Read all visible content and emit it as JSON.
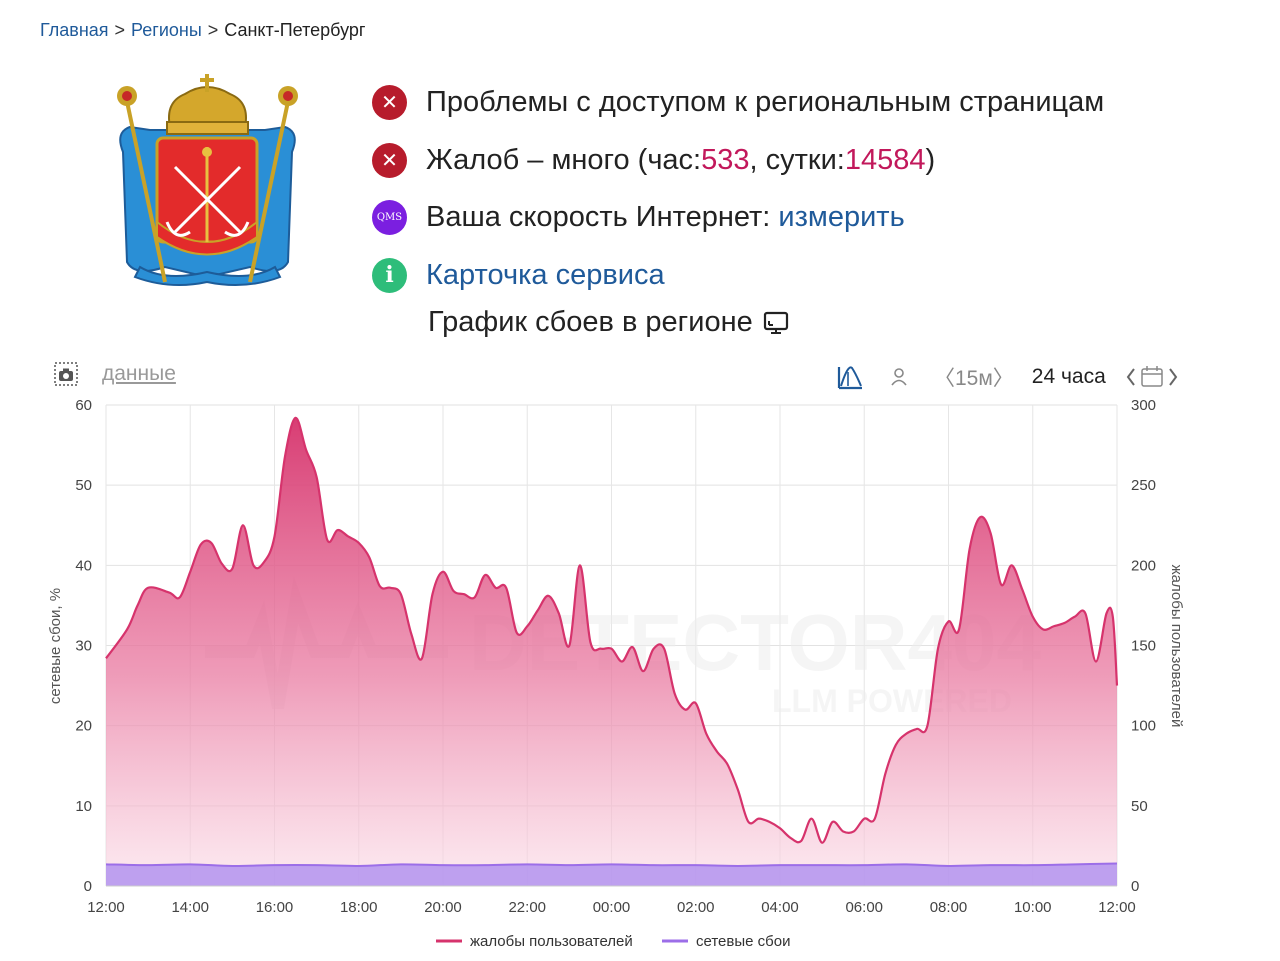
{
  "breadcrumb": {
    "home": "Главная",
    "regions": "Регионы",
    "current": "Санкт-Петербург"
  },
  "status": {
    "access_problems": "Проблемы с доступом к региональным страницам",
    "complaints_prefix": "Жалоб – много (час: ",
    "complaints_hour": "533",
    "complaints_mid": ", сутки: ",
    "complaints_day": "14584",
    "complaints_suffix": ")",
    "speed_prefix": "Ваша скорость Интернет: ",
    "speed_link": "измерить",
    "qms_badge": "QMS",
    "service_card": "Карточка сервиса"
  },
  "graph_title": "График сбоев в регионе",
  "toolbar": {
    "data_link": "данные",
    "interval": "〈15м〉",
    "range": "24 часа"
  },
  "watermark": {
    "line1": "DETECTOR404",
    "line2": "LLM POWERED"
  },
  "colors": {
    "complaints": "#d6336c",
    "outages": "#9c6ee8",
    "link": "#1f5a9a",
    "error": "#b71c2c"
  },
  "chart_data": {
    "type": "area",
    "xlabels": [
      "12:00",
      "14:00",
      "16:00",
      "18:00",
      "20:00",
      "22:00",
      "00:00",
      "02:00",
      "04:00",
      "06:00",
      "08:00",
      "10:00",
      "12:00"
    ],
    "y_left": {
      "label": "сетевые сбои, %",
      "ticks": [
        "0",
        "10",
        "20",
        "30",
        "40",
        "50",
        "60"
      ],
      "range": [
        0,
        60
      ]
    },
    "y_right": {
      "label": "жалобы пользователей",
      "ticks": [
        "0",
        "50",
        "100",
        "150",
        "200",
        "250",
        "300"
      ],
      "range": [
        0,
        300
      ]
    },
    "x_range_hours": [
      0,
      24
    ],
    "series": [
      {
        "name": "жалобы пользователей",
        "axis": "right",
        "points": [
          [
            0,
            142
          ],
          [
            0.5,
            160
          ],
          [
            0.75,
            175
          ],
          [
            1,
            186
          ],
          [
            1.5,
            183
          ],
          [
            1.75,
            180
          ],
          [
            2,
            196
          ],
          [
            2.25,
            213
          ],
          [
            2.5,
            214
          ],
          [
            2.75,
            201
          ],
          [
            3,
            198
          ],
          [
            3.25,
            225
          ],
          [
            3.5,
            200
          ],
          [
            3.75,
            202
          ],
          [
            4,
            218
          ],
          [
            4.25,
            268
          ],
          [
            4.5,
            292
          ],
          [
            4.75,
            272
          ],
          [
            5,
            255
          ],
          [
            5.25,
            216
          ],
          [
            5.5,
            222
          ],
          [
            5.75,
            218
          ],
          [
            6,
            214
          ],
          [
            6.25,
            205
          ],
          [
            6.5,
            187
          ],
          [
            6.75,
            186
          ],
          [
            7,
            182
          ],
          [
            7.25,
            157
          ],
          [
            7.5,
            142
          ],
          [
            7.75,
            182
          ],
          [
            8,
            196
          ],
          [
            8.25,
            184
          ],
          [
            8.5,
            182
          ],
          [
            8.75,
            180
          ],
          [
            9,
            194
          ],
          [
            9.25,
            186
          ],
          [
            9.5,
            186
          ],
          [
            9.75,
            158
          ],
          [
            10,
            162
          ],
          [
            10.25,
            172
          ],
          [
            10.5,
            181
          ],
          [
            10.75,
            170
          ],
          [
            11,
            150
          ],
          [
            11.25,
            200
          ],
          [
            11.5,
            152
          ],
          [
            11.75,
            148
          ],
          [
            12,
            148
          ],
          [
            12.25,
            140
          ],
          [
            12.5,
            149
          ],
          [
            12.75,
            134
          ],
          [
            13,
            148
          ],
          [
            13.25,
            148
          ],
          [
            13.5,
            120
          ],
          [
            13.75,
            110
          ],
          [
            14,
            114
          ],
          [
            14.25,
            95
          ],
          [
            14.5,
            84
          ],
          [
            14.75,
            76
          ],
          [
            15,
            60
          ],
          [
            15.25,
            40
          ],
          [
            15.5,
            42
          ],
          [
            15.75,
            40
          ],
          [
            16,
            36
          ],
          [
            16.25,
            30
          ],
          [
            16.5,
            28
          ],
          [
            16.75,
            42
          ],
          [
            17,
            27
          ],
          [
            17.25,
            40
          ],
          [
            17.5,
            34
          ],
          [
            17.75,
            34
          ],
          [
            18,
            42
          ],
          [
            18.25,
            42
          ],
          [
            18.5,
            70
          ],
          [
            18.75,
            88
          ],
          [
            19,
            95
          ],
          [
            19.25,
            98
          ],
          [
            19.5,
            100
          ],
          [
            19.75,
            148
          ],
          [
            20,
            165
          ],
          [
            20.25,
            160
          ],
          [
            20.5,
            210
          ],
          [
            20.75,
            230
          ],
          [
            21,
            220
          ],
          [
            21.25,
            188
          ],
          [
            21.5,
            200
          ],
          [
            21.75,
            185
          ],
          [
            22,
            168
          ],
          [
            22.25,
            160
          ],
          [
            22.5,
            162
          ],
          [
            22.75,
            164
          ],
          [
            23,
            168
          ],
          [
            23.25,
            170
          ],
          [
            23.5,
            140
          ],
          [
            23.75,
            170
          ],
          [
            23.9,
            168
          ],
          [
            24,
            125
          ]
        ]
      },
      {
        "name": "сетевые сбои",
        "axis": "left",
        "points": [
          [
            0,
            2.7
          ],
          [
            1,
            2.6
          ],
          [
            2,
            2.7
          ],
          [
            3,
            2.5
          ],
          [
            4,
            2.6
          ],
          [
            5,
            2.6
          ],
          [
            6,
            2.5
          ],
          [
            7,
            2.7
          ],
          [
            8,
            2.6
          ],
          [
            9,
            2.6
          ],
          [
            10,
            2.7
          ],
          [
            11,
            2.6
          ],
          [
            12,
            2.7
          ],
          [
            13,
            2.6
          ],
          [
            14,
            2.6
          ],
          [
            15,
            2.5
          ],
          [
            16,
            2.6
          ],
          [
            17,
            2.6
          ],
          [
            18,
            2.6
          ],
          [
            19,
            2.7
          ],
          [
            20,
            2.5
          ],
          [
            21,
            2.6
          ],
          [
            22,
            2.6
          ],
          [
            23,
            2.7
          ],
          [
            24,
            2.8
          ]
        ]
      }
    ],
    "grid": true,
    "legend_position": "bottom-center"
  }
}
